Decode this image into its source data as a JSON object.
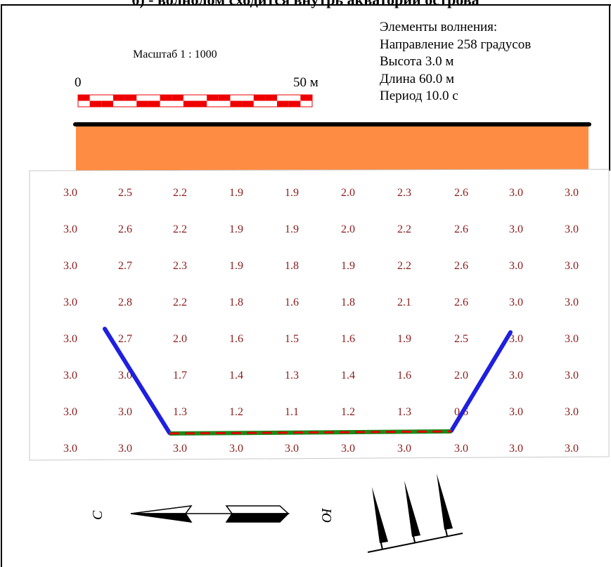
{
  "caption": "б) - волнолом сходится внутрь акватории острова",
  "scale": {
    "title": "Масштаб  1 : 1000",
    "start_label": "0",
    "end_label": "50 м"
  },
  "wave_elements": {
    "heading": "Элементы волнения:",
    "direction": "Направление 258 градусов",
    "height": "Высота 3.0 м",
    "length": "Длина 60.0 м",
    "period": "Период 10.0 с"
  },
  "compass": {
    "north_label": "С",
    "south_label": "Ю"
  },
  "colors": {
    "land": "#ff8c42",
    "shore_line": "#000000",
    "breakwater": "#1f1fe0",
    "breakwater_bottom_a": "#e00000",
    "breakwater_bottom_b": "#1a8a1a",
    "cell_text": "#8b1a1a",
    "scale_red": "#ee0000"
  },
  "grid": {
    "rows": [
      [
        "3.0",
        "2.5",
        "2.2",
        "1.9",
        "1.9",
        "2.0",
        "2.3",
        "2.6",
        "3.0",
        "3.0"
      ],
      [
        "3.0",
        "2.6",
        "2.2",
        "1.9",
        "1.9",
        "2.0",
        "2.2",
        "2.6",
        "3.0",
        "3.0"
      ],
      [
        "3.0",
        "2.7",
        "2.3",
        "1.9",
        "1.8",
        "1.9",
        "2.2",
        "2.6",
        "3.0",
        "3.0"
      ],
      [
        "3.0",
        "2.8",
        "2.2",
        "1.8",
        "1.6",
        "1.8",
        "2.1",
        "2.6",
        "3.0",
        "3.0"
      ],
      [
        "3.0",
        "2.7",
        "2.0",
        "1.6",
        "1.5",
        "1.6",
        "1.9",
        "2.5",
        "3.0",
        "3.0"
      ],
      [
        "3.0",
        "3.0",
        "1.7",
        "1.4",
        "1.3",
        "1.4",
        "1.6",
        "2.0",
        "3.0",
        "3.0"
      ],
      [
        "3.0",
        "3.0",
        "1.3",
        "1.2",
        "1.1",
        "1.2",
        "1.3",
        "0.6",
        "3.0",
        "3.0"
      ],
      [
        "3.0",
        "3.0",
        "3.0",
        "3.0",
        "3.0",
        "3.0",
        "3.0",
        "3.0",
        "3.0",
        "3.0"
      ]
    ]
  }
}
